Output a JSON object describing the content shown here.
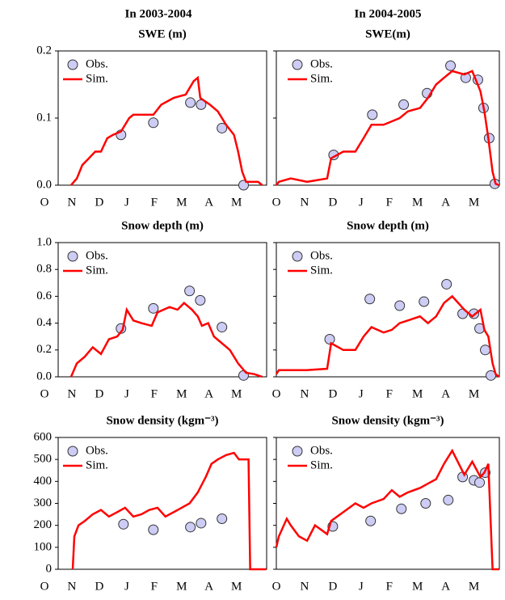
{
  "headings": [
    "In 2003-2004",
    "In 2004-2005"
  ],
  "chart_data": [
    {
      "type": "line",
      "title": "SWE (m)",
      "xlim": [
        0.5,
        8.1
      ],
      "xticks": [
        {
          "value": 0,
          "label": "O"
        },
        {
          "value": 1,
          "label": "N"
        },
        {
          "value": 2,
          "label": "D"
        },
        {
          "value": 3,
          "label": "J"
        },
        {
          "value": 4,
          "label": "F"
        },
        {
          "value": 5,
          "label": "M"
        },
        {
          "value": 6,
          "label": "A"
        },
        {
          "value": 7,
          "label": "M"
        }
      ],
      "ylim": [
        0,
        0.2
      ],
      "yticks": [
        {
          "value": 0,
          "label": "0.0"
        },
        {
          "value": 0.1,
          "label": "0.1"
        },
        {
          "value": 0.2,
          "label": "0.2"
        }
      ],
      "ytick_labels": true,
      "series": [
        {
          "name": "Obs.",
          "type": "scatter",
          "color": "#ccccf4",
          "x": [
            2.79,
            3.97,
            5.32,
            5.71,
            6.47,
            7.26
          ],
          "values": [
            0.075,
            0.093,
            0.123,
            0.12,
            0.085,
            0
          ]
        },
        {
          "name": "Sim.",
          "type": "line",
          "color": "#ff0000",
          "x": [
            0.97,
            1.18,
            1.38,
            1.62,
            1.85,
            2.06,
            2.29,
            2.5,
            2.79,
            3.09,
            3.24,
            3.97,
            4.26,
            4.71,
            5.15,
            5.44,
            5.59,
            5.68,
            6.03,
            6.32,
            6.62,
            6.91,
            7.06,
            7.21,
            7.35,
            7.79,
            7.94
          ],
          "values": [
            0,
            0.01,
            0.03,
            0.04,
            0.05,
            0.05,
            0.07,
            0.075,
            0.08,
            0.1,
            0.105,
            0.105,
            0.12,
            0.13,
            0.135,
            0.155,
            0.16,
            0.13,
            0.12,
            0.11,
            0.09,
            0.075,
            0.05,
            0.02,
            0.005,
            0.005,
            0
          ]
        }
      ]
    },
    {
      "type": "line",
      "title": "SWE(m)",
      "xlim": [
        0,
        7.9
      ],
      "xticks": [
        {
          "value": 0,
          "label": "O"
        },
        {
          "value": 1,
          "label": "N"
        },
        {
          "value": 2,
          "label": "D"
        },
        {
          "value": 3,
          "label": "J"
        },
        {
          "value": 4,
          "label": "F"
        },
        {
          "value": 5,
          "label": "M"
        },
        {
          "value": 6,
          "label": "A"
        },
        {
          "value": 7,
          "label": "M"
        }
      ],
      "ylim": [
        0,
        0.2
      ],
      "yticks": [
        0,
        0.1,
        0.2
      ],
      "ytick_labels": false,
      "series": [
        {
          "name": "Obs.",
          "type": "scatter",
          "color": "#ccccf4",
          "x": [
            2.03,
            3.4,
            4.51,
            5.34,
            6.17,
            6.71,
            7.14,
            7.34,
            7.54,
            7.74
          ],
          "values": [
            0.045,
            0.105,
            0.12,
            0.137,
            0.178,
            0.16,
            0.157,
            0.115,
            0.07,
            0.002
          ]
        },
        {
          "name": "Sim.",
          "type": "line",
          "color": "#ff0000",
          "x": [
            0,
            0.09,
            0.51,
            1.09,
            1.8,
            1.94,
            2.37,
            2.8,
            3.09,
            3.37,
            3.8,
            4.09,
            4.37,
            4.66,
            5.09,
            5.37,
            5.66,
            5.94,
            6.23,
            6.66,
            6.94,
            7.23,
            7.37,
            7.51,
            7.66,
            7.77,
            7.89
          ],
          "values": [
            0,
            0.005,
            0.01,
            0.005,
            0.01,
            0.04,
            0.05,
            0.05,
            0.07,
            0.09,
            0.09,
            0.095,
            0.1,
            0.11,
            0.115,
            0.13,
            0.15,
            0.16,
            0.17,
            0.165,
            0.17,
            0.14,
            0.11,
            0.07,
            0.02,
            0.002,
            0
          ]
        }
      ]
    },
    {
      "type": "line",
      "title": "Snow depth (m)",
      "xlim": [
        0.5,
        8.1
      ],
      "xticks": [
        {
          "value": 0,
          "label": "O"
        },
        {
          "value": 1,
          "label": "N"
        },
        {
          "value": 2,
          "label": "D"
        },
        {
          "value": 3,
          "label": "J"
        },
        {
          "value": 4,
          "label": "F"
        },
        {
          "value": 5,
          "label": "M"
        },
        {
          "value": 6,
          "label": "A"
        },
        {
          "value": 7,
          "label": "M"
        }
      ],
      "ylim": [
        0,
        1
      ],
      "yticks": [
        {
          "value": 0,
          "label": "0.0"
        },
        {
          "value": 0.2,
          "label": "0.2"
        },
        {
          "value": 0.4,
          "label": "0.4"
        },
        {
          "value": 0.6,
          "label": "0.6"
        },
        {
          "value": 0.8,
          "label": "0.8"
        },
        {
          "value": 1,
          "label": "1.0"
        }
      ],
      "ytick_labels": true,
      "series": [
        {
          "name": "Obs.",
          "type": "scatter",
          "color": "#ccccf4",
          "x": [
            2.79,
            3.97,
            5.29,
            5.68,
            6.47,
            7.26
          ],
          "values": [
            0.36,
            0.51,
            0.64,
            0.57,
            0.37,
            0.01
          ]
        },
        {
          "name": "Sim.",
          "type": "line",
          "color": "#ff0000",
          "x": [
            0.97,
            1.18,
            1.47,
            1.76,
            2.06,
            2.35,
            2.65,
            2.85,
            3.0,
            3.24,
            3.53,
            3.91,
            4.12,
            4.56,
            4.85,
            5.09,
            5.38,
            5.59,
            5.74,
            5.97,
            6.18,
            6.47,
            6.76,
            7.06,
            7.35,
            7.65,
            7.94
          ],
          "values": [
            0,
            0.1,
            0.15,
            0.22,
            0.17,
            0.28,
            0.3,
            0.35,
            0.5,
            0.42,
            0.4,
            0.38,
            0.48,
            0.52,
            0.5,
            0.55,
            0.5,
            0.45,
            0.38,
            0.4,
            0.3,
            0.25,
            0.2,
            0.1,
            0.03,
            0.02,
            0
          ]
        }
      ]
    },
    {
      "type": "line",
      "title": "Snow depth (m)",
      "xlim": [
        0,
        7.9
      ],
      "xticks": [
        {
          "value": 0,
          "label": "O"
        },
        {
          "value": 1,
          "label": "N"
        },
        {
          "value": 2,
          "label": "D"
        },
        {
          "value": 3,
          "label": "J"
        },
        {
          "value": 4,
          "label": "F"
        },
        {
          "value": 5,
          "label": "M"
        },
        {
          "value": 6,
          "label": "A"
        },
        {
          "value": 7,
          "label": "M"
        }
      ],
      "ylim": [
        0,
        1
      ],
      "yticks": [
        0,
        0.2,
        0.4,
        0.6,
        0.8,
        1
      ],
      "ytick_labels": false,
      "series": [
        {
          "name": "Obs.",
          "type": "scatter",
          "color": "#ccccf4",
          "x": [
            1.89,
            3.31,
            4.37,
            5.23,
            6.03,
            6.6,
            7.0,
            7.2,
            7.4,
            7.6
          ],
          "values": [
            0.28,
            0.58,
            0.53,
            0.56,
            0.69,
            0.47,
            0.47,
            0.36,
            0.2,
            0.01
          ]
        },
        {
          "name": "Sim.",
          "type": "line",
          "color": "#ff0000",
          "x": [
            0,
            0.09,
            0.51,
            1.09,
            1.8,
            1.94,
            2.37,
            2.8,
            3.09,
            3.37,
            3.8,
            4.09,
            4.37,
            4.66,
            5.09,
            5.37,
            5.66,
            5.94,
            6.23,
            6.66,
            6.94,
            7.23,
            7.37,
            7.51,
            7.66,
            7.77,
            7.89
          ],
          "values": [
            0.02,
            0.05,
            0.05,
            0.05,
            0.06,
            0.25,
            0.2,
            0.2,
            0.3,
            0.37,
            0.33,
            0.35,
            0.4,
            0.42,
            0.45,
            0.4,
            0.45,
            0.55,
            0.6,
            0.5,
            0.45,
            0.5,
            0.35,
            0.3,
            0.1,
            0.02,
            0
          ]
        }
      ]
    },
    {
      "type": "line",
      "title": "Snow density (kgm⁻³)",
      "xlim": [
        0.5,
        8.1
      ],
      "xticks": [
        {
          "value": 0,
          "label": "O"
        },
        {
          "value": 1,
          "label": "N"
        },
        {
          "value": 2,
          "label": "D"
        },
        {
          "value": 3,
          "label": "J"
        },
        {
          "value": 4,
          "label": "F"
        },
        {
          "value": 5,
          "label": "M"
        },
        {
          "value": 6,
          "label": "A"
        },
        {
          "value": 7,
          "label": "M"
        }
      ],
      "ylim": [
        0,
        600
      ],
      "yticks": [
        0,
        100,
        200,
        300,
        400,
        500,
        600
      ],
      "ytick_labels": true,
      "series": [
        {
          "name": "Obs.",
          "type": "scatter",
          "color": "#ccccf4",
          "x": [
            2.88,
            3.97,
            5.32,
            5.71,
            6.47
          ],
          "values": [
            205,
            180,
            192,
            210,
            230
          ]
        },
        {
          "name": "Sim.",
          "type": "line",
          "color": "#ff0000",
          "x": [
            1.03,
            1.09,
            1.24,
            1.47,
            1.76,
            2.06,
            2.35,
            2.65,
            2.94,
            3.24,
            3.53,
            3.82,
            4.12,
            4.41,
            4.71,
            5.0,
            5.29,
            5.59,
            5.88,
            6.09,
            6.32,
            6.62,
            6.91,
            7.09,
            7.44,
            7.5,
            8.09
          ],
          "values": [
            0,
            150,
            200,
            220,
            250,
            270,
            240,
            260,
            280,
            240,
            250,
            270,
            280,
            240,
            260,
            280,
            300,
            350,
            420,
            480,
            500,
            520,
            530,
            500,
            500,
            0,
            0
          ]
        }
      ]
    },
    {
      "type": "line",
      "title": "Snow density (kgm⁻³)",
      "xlim": [
        0,
        7.9
      ],
      "xticks": [
        {
          "value": 0,
          "label": "O"
        },
        {
          "value": 1,
          "label": "N"
        },
        {
          "value": 2,
          "label": "D"
        },
        {
          "value": 3,
          "label": "J"
        },
        {
          "value": 4,
          "label": "F"
        },
        {
          "value": 5,
          "label": "M"
        },
        {
          "value": 6,
          "label": "A"
        },
        {
          "value": 7,
          "label": "M"
        }
      ],
      "ylim": [
        0,
        600
      ],
      "yticks": [
        0,
        100,
        200,
        300,
        400,
        500,
        600
      ],
      "ytick_labels": false,
      "series": [
        {
          "name": "Obs.",
          "type": "scatter",
          "color": "#ccccf4",
          "x": [
            2.0,
            3.34,
            4.43,
            5.29,
            6.09,
            6.6,
            7.0,
            7.2,
            7.4
          ],
          "values": [
            195,
            220,
            275,
            300,
            315,
            420,
            405,
            395,
            440
          ]
        },
        {
          "name": "Sim.",
          "type": "line",
          "color": "#ff0000",
          "x": [
            0,
            0.09,
            0.37,
            0.51,
            0.8,
            1.09,
            1.37,
            1.8,
            1.94,
            2.37,
            2.8,
            3.09,
            3.37,
            3.8,
            4.09,
            4.37,
            4.66,
            5.09,
            5.37,
            5.66,
            5.94,
            6.23,
            6.66,
            6.94,
            7.23,
            7.37,
            7.51,
            7.66,
            7.89
          ],
          "values": [
            100,
            150,
            230,
            200,
            150,
            130,
            200,
            160,
            220,
            260,
            300,
            280,
            300,
            320,
            360,
            330,
            350,
            370,
            390,
            410,
            480,
            540,
            430,
            490,
            420,
            440,
            480,
            0,
            0
          ]
        }
      ]
    }
  ]
}
